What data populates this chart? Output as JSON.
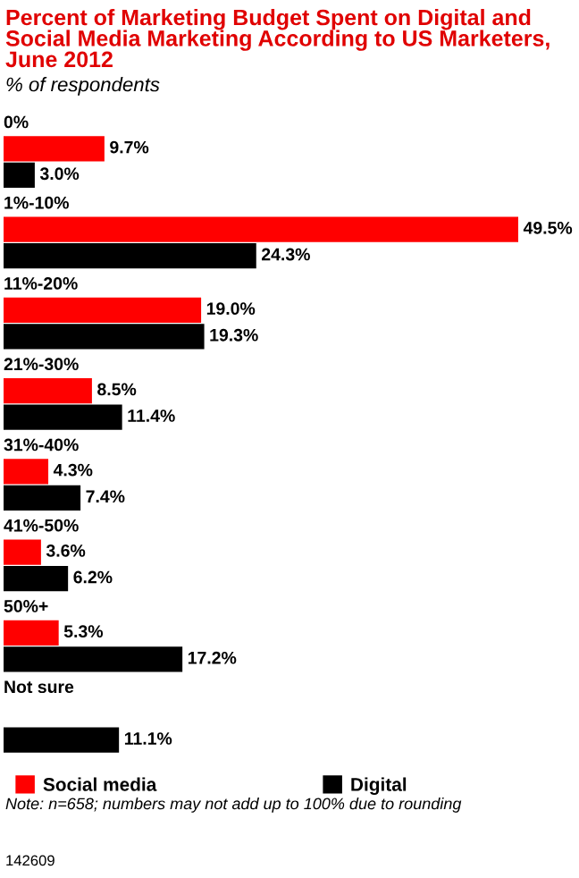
{
  "chart_data": {
    "type": "bar",
    "orientation": "horizontal",
    "title": "Percent of Marketing Budget Spent on Digital and Social Media Marketing According to US Marketers, June 2012",
    "subtitle": "% of respondents",
    "categories": [
      "0%",
      "1%-10%",
      "11%-20%",
      "21%-30%",
      "31%-40%",
      "41%-50%",
      "50%+",
      "Not sure"
    ],
    "series": [
      {
        "name": "Social media",
        "color": "#ff0000",
        "values": [
          9.7,
          49.5,
          19.0,
          8.5,
          4.3,
          3.6,
          5.3,
          null
        ],
        "value_labels": [
          "9.7%",
          "49.5%",
          "19.0%",
          "8.5%",
          "4.3%",
          "3.6%",
          "5.3%",
          null
        ]
      },
      {
        "name": "Digital",
        "color": "#000000",
        "values": [
          3.0,
          24.3,
          19.3,
          11.4,
          7.4,
          6.2,
          17.2,
          11.1
        ],
        "value_labels": [
          "3.0%",
          "24.3%",
          "19.3%",
          "11.4%",
          "7.4%",
          "6.2%",
          "17.2%",
          "11.1%"
        ]
      }
    ],
    "legend": "bottom",
    "annotations": [
      "Note: n=658; numbers may not add up to 100% due to rounding",
      "142609"
    ]
  }
}
